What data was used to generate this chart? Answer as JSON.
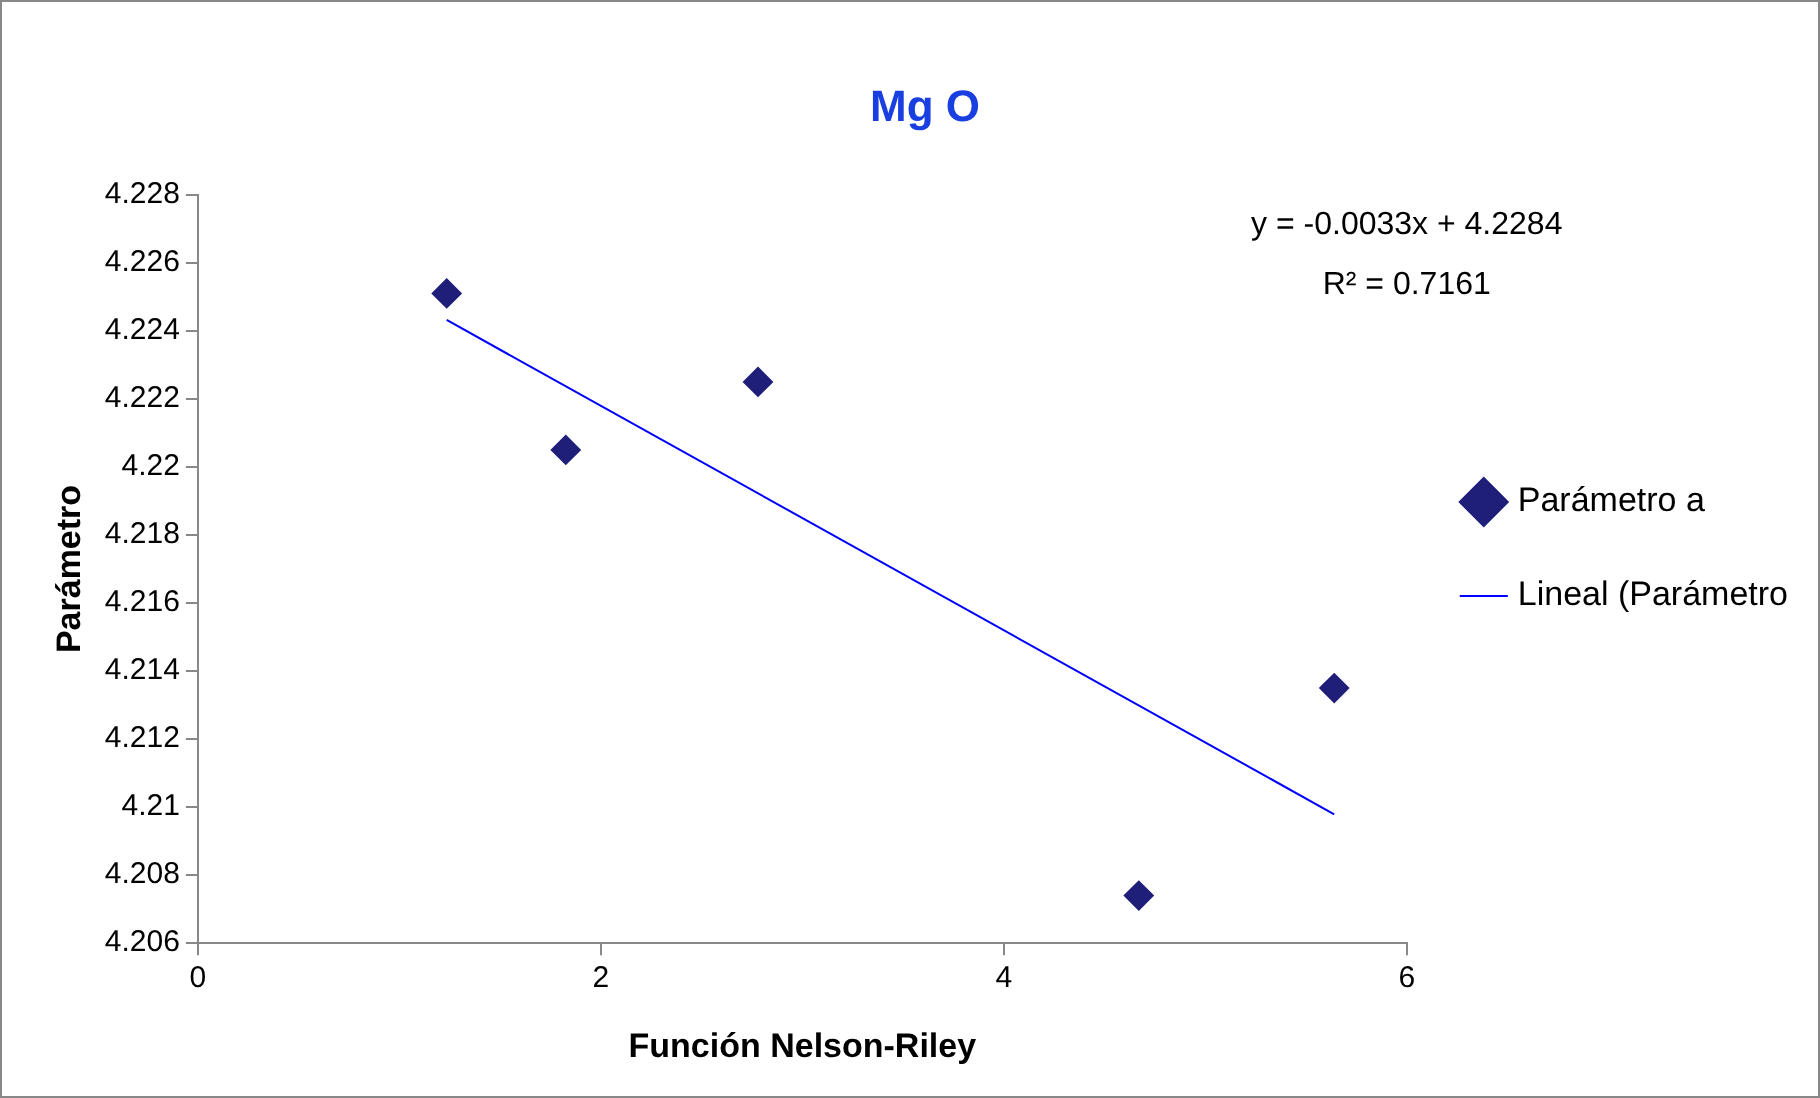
{
  "chart_data": {
    "type": "scatter",
    "title": "Mg O",
    "xlabel": "Función Nelson-Riley",
    "ylabel": "Parámetro",
    "annotations": [
      "y = -0.0033x + 4.2284",
      "R² = 0.7161"
    ],
    "series": [
      {
        "name": "Parámetro a",
        "color": "#1f1f7a",
        "marker": "diamond",
        "x": [
          1.235,
          1.826,
          2.78,
          4.67,
          5.64
        ],
        "values": [
          4.2251,
          4.2205,
          4.2225,
          4.2074,
          4.2135
        ]
      },
      {
        "name": "Lineal (Parámetro",
        "type": "line",
        "color": "#0000ff",
        "marker": "none",
        "x": [
          1.235,
          5.64
        ],
        "values": [
          4.22432,
          4.20979
        ]
      }
    ],
    "xlim": [
      0,
      6
    ],
    "xticks": [
      0,
      2,
      4,
      6
    ],
    "ylim": [
      4.206,
      4.228
    ],
    "yticks": [
      4.206,
      4.208,
      4.21,
      4.212,
      4.214,
      4.216,
      4.218,
      4.22,
      4.222,
      4.224,
      4.226,
      4.228
    ],
    "grid": false,
    "legend": "right"
  }
}
